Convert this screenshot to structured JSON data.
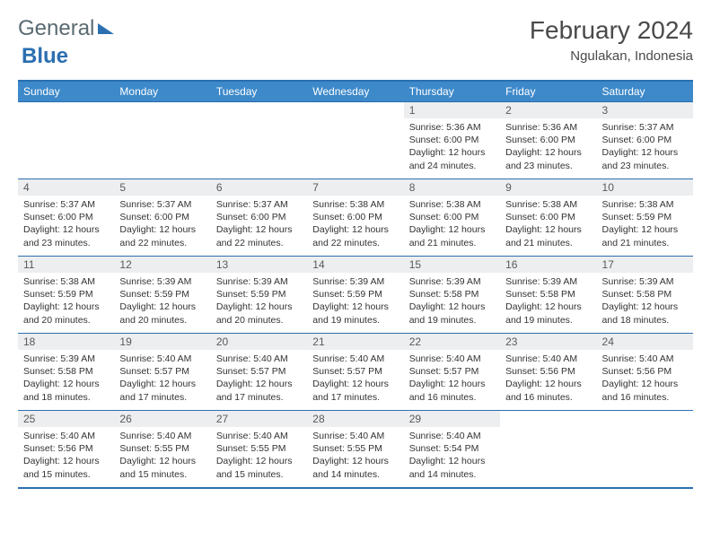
{
  "logo": {
    "part1": "General",
    "part2": "Blue"
  },
  "header": {
    "title": "February 2024",
    "location": "Ngulakan, Indonesia"
  },
  "colors": {
    "header_bg": "#3d89c9",
    "border": "#2b6fb0",
    "daynum_bg": "#eceeef",
    "text": "#333333"
  },
  "weekdays": [
    "Sunday",
    "Monday",
    "Tuesday",
    "Wednesday",
    "Thursday",
    "Friday",
    "Saturday"
  ],
  "weeks": [
    [
      null,
      null,
      null,
      null,
      {
        "n": "1",
        "sr": "5:36 AM",
        "ss": "6:00 PM",
        "dl": "12 hours and 24 minutes."
      },
      {
        "n": "2",
        "sr": "5:36 AM",
        "ss": "6:00 PM",
        "dl": "12 hours and 23 minutes."
      },
      {
        "n": "3",
        "sr": "5:37 AM",
        "ss": "6:00 PM",
        "dl": "12 hours and 23 minutes."
      }
    ],
    [
      {
        "n": "4",
        "sr": "5:37 AM",
        "ss": "6:00 PM",
        "dl": "12 hours and 23 minutes."
      },
      {
        "n": "5",
        "sr": "5:37 AM",
        "ss": "6:00 PM",
        "dl": "12 hours and 22 minutes."
      },
      {
        "n": "6",
        "sr": "5:37 AM",
        "ss": "6:00 PM",
        "dl": "12 hours and 22 minutes."
      },
      {
        "n": "7",
        "sr": "5:38 AM",
        "ss": "6:00 PM",
        "dl": "12 hours and 22 minutes."
      },
      {
        "n": "8",
        "sr": "5:38 AM",
        "ss": "6:00 PM",
        "dl": "12 hours and 21 minutes."
      },
      {
        "n": "9",
        "sr": "5:38 AM",
        "ss": "6:00 PM",
        "dl": "12 hours and 21 minutes."
      },
      {
        "n": "10",
        "sr": "5:38 AM",
        "ss": "5:59 PM",
        "dl": "12 hours and 21 minutes."
      }
    ],
    [
      {
        "n": "11",
        "sr": "5:38 AM",
        "ss": "5:59 PM",
        "dl": "12 hours and 20 minutes."
      },
      {
        "n": "12",
        "sr": "5:39 AM",
        "ss": "5:59 PM",
        "dl": "12 hours and 20 minutes."
      },
      {
        "n": "13",
        "sr": "5:39 AM",
        "ss": "5:59 PM",
        "dl": "12 hours and 20 minutes."
      },
      {
        "n": "14",
        "sr": "5:39 AM",
        "ss": "5:59 PM",
        "dl": "12 hours and 19 minutes."
      },
      {
        "n": "15",
        "sr": "5:39 AM",
        "ss": "5:58 PM",
        "dl": "12 hours and 19 minutes."
      },
      {
        "n": "16",
        "sr": "5:39 AM",
        "ss": "5:58 PM",
        "dl": "12 hours and 19 minutes."
      },
      {
        "n": "17",
        "sr": "5:39 AM",
        "ss": "5:58 PM",
        "dl": "12 hours and 18 minutes."
      }
    ],
    [
      {
        "n": "18",
        "sr": "5:39 AM",
        "ss": "5:58 PM",
        "dl": "12 hours and 18 minutes."
      },
      {
        "n": "19",
        "sr": "5:40 AM",
        "ss": "5:57 PM",
        "dl": "12 hours and 17 minutes."
      },
      {
        "n": "20",
        "sr": "5:40 AM",
        "ss": "5:57 PM",
        "dl": "12 hours and 17 minutes."
      },
      {
        "n": "21",
        "sr": "5:40 AM",
        "ss": "5:57 PM",
        "dl": "12 hours and 17 minutes."
      },
      {
        "n": "22",
        "sr": "5:40 AM",
        "ss": "5:57 PM",
        "dl": "12 hours and 16 minutes."
      },
      {
        "n": "23",
        "sr": "5:40 AM",
        "ss": "5:56 PM",
        "dl": "12 hours and 16 minutes."
      },
      {
        "n": "24",
        "sr": "5:40 AM",
        "ss": "5:56 PM",
        "dl": "12 hours and 16 minutes."
      }
    ],
    [
      {
        "n": "25",
        "sr": "5:40 AM",
        "ss": "5:56 PM",
        "dl": "12 hours and 15 minutes."
      },
      {
        "n": "26",
        "sr": "5:40 AM",
        "ss": "5:55 PM",
        "dl": "12 hours and 15 minutes."
      },
      {
        "n": "27",
        "sr": "5:40 AM",
        "ss": "5:55 PM",
        "dl": "12 hours and 15 minutes."
      },
      {
        "n": "28",
        "sr": "5:40 AM",
        "ss": "5:55 PM",
        "dl": "12 hours and 14 minutes."
      },
      {
        "n": "29",
        "sr": "5:40 AM",
        "ss": "5:54 PM",
        "dl": "12 hours and 14 minutes."
      },
      null,
      null
    ]
  ],
  "labels": {
    "sunrise": "Sunrise: ",
    "sunset": "Sunset: ",
    "daylight": "Daylight: "
  }
}
